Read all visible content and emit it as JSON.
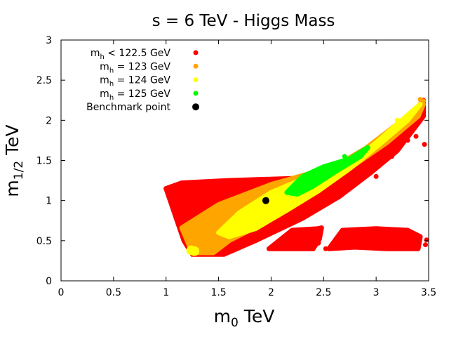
{
  "chart_data": {
    "type": "scatter",
    "title": "s = 6 TeV - Higgs Mass",
    "xlabel": {
      "main": "m",
      "sub": "0",
      "rest": " TeV"
    },
    "ylabel": {
      "main": "m",
      "sub": "1/2",
      "rest": " TeV"
    },
    "xlim": [
      0,
      3.5
    ],
    "ylim": [
      0,
      3
    ],
    "xticks": [
      "0",
      "0.5",
      "1",
      "1.5",
      "2",
      "2.5",
      "3",
      "3.5"
    ],
    "yticks": [
      "0",
      "0.5",
      "1",
      "1.5",
      "2",
      "2.5",
      "3"
    ],
    "legend": [
      {
        "main": "m",
        "sub": "h",
        "rest": " < 122.5 GeV",
        "color": "#ff0000"
      },
      {
        "main": "m",
        "sub": "h",
        "rest": " = 123 GeV",
        "color": "#ffa500"
      },
      {
        "main": "m",
        "sub": "h",
        "rest": " = 124 GeV",
        "color": "#ffff00"
      },
      {
        "main": "m",
        "sub": "h",
        "rest": " = 125 GeV",
        "color": "#00ff00"
      },
      {
        "main": "Benchmark point",
        "sub": "",
        "rest": "",
        "color": "#000000"
      }
    ],
    "series": [
      {
        "name": "mh < 122.5 GeV",
        "color": "#ff0000",
        "regions": [
          [
            [
              1.0,
              1.15
            ],
            [
              1.15,
              1.22
            ],
            [
              1.6,
              1.25
            ],
            [
              2.3,
              1.28
            ],
            [
              2.55,
              1.3
            ],
            [
              2.85,
              1.5
            ],
            [
              3.2,
              1.85
            ],
            [
              3.45,
              2.25
            ],
            [
              3.45,
              2.05
            ],
            [
              3.2,
              1.62
            ],
            [
              2.95,
              1.35
            ],
            [
              2.65,
              1.05
            ],
            [
              2.3,
              0.78
            ],
            [
              1.85,
              0.5
            ],
            [
              1.55,
              0.33
            ],
            [
              1.25,
              0.33
            ],
            [
              1.17,
              0.5
            ]
          ],
          [
            [
              2.0,
              0.4
            ],
            [
              2.15,
              0.55
            ],
            [
              2.48,
              0.66
            ],
            [
              2.46,
              0.52
            ],
            [
              2.4,
              0.4
            ]
          ],
          [
            [
              1.98,
              0.4
            ],
            [
              2.2,
              0.63
            ],
            [
              2.45,
              0.65
            ],
            [
              2.45,
              0.47
            ]
          ],
          [
            [
              2.55,
              0.4
            ],
            [
              2.68,
              0.63
            ],
            [
              3.0,
              0.65
            ],
            [
              3.3,
              0.63
            ],
            [
              3.42,
              0.55
            ],
            [
              3.4,
              0.4
            ],
            [
              3.1,
              0.4
            ],
            [
              2.8,
              0.42
            ]
          ]
        ],
        "points": [
          [
            3.45,
            2.25
          ],
          [
            3.46,
            1.7
          ],
          [
            3.3,
            1.75
          ],
          [
            3.2,
            1.65
          ],
          [
            3.25,
            1.9
          ],
          [
            3.05,
            1.5
          ],
          [
            3.15,
            1.55
          ],
          [
            2.95,
            1.4
          ],
          [
            2.75,
            1.25
          ],
          [
            2.65,
            1.15
          ],
          [
            2.55,
            1.05
          ],
          [
            2.5,
            0.95
          ],
          [
            2.85,
            1.3
          ],
          [
            2.9,
            1.45
          ],
          [
            3.0,
            1.3
          ],
          [
            3.38,
            1.8
          ],
          [
            2.42,
            0.95
          ],
          [
            3.48,
            0.51
          ],
          [
            2.52,
            0.4
          ],
          [
            3.47,
            0.45
          ],
          [
            1.0,
            1.15
          ],
          [
            3.35,
            1.95
          ],
          [
            3.1,
            1.6
          ]
        ]
      },
      {
        "name": "mh = 123 GeV",
        "color": "#ffa500",
        "regions": [
          [
            [
              1.15,
              0.66
            ],
            [
              1.5,
              0.95
            ],
            [
              2.0,
              1.2
            ],
            [
              2.35,
              1.33
            ],
            [
              2.6,
              1.42
            ],
            [
              2.9,
              1.65
            ],
            [
              3.2,
              1.95
            ],
            [
              3.45,
              2.2
            ],
            [
              3.4,
              2.05
            ],
            [
              3.1,
              1.72
            ],
            [
              2.8,
              1.45
            ],
            [
              2.5,
              1.18
            ],
            [
              2.2,
              0.94
            ],
            [
              1.9,
              0.7
            ],
            [
              1.6,
              0.5
            ],
            [
              1.45,
              0.35
            ],
            [
              1.25,
              0.35
            ]
          ]
        ],
        "points": [
          [
            3.42,
            2.26
          ],
          [
            3.45,
            2.24
          ]
        ]
      },
      {
        "name": "mh = 124 GeV",
        "color": "#ffff00",
        "regions": [
          [
            [
              1.5,
              0.6
            ],
            [
              1.7,
              0.85
            ],
            [
              2.0,
              1.1
            ],
            [
              2.4,
              1.32
            ],
            [
              2.6,
              1.36
            ],
            [
              2.85,
              1.55
            ],
            [
              3.2,
              1.95
            ],
            [
              3.42,
              2.2
            ],
            [
              3.3,
              2.0
            ],
            [
              3.05,
              1.72
            ],
            [
              2.75,
              1.4
            ],
            [
              2.45,
              1.12
            ],
            [
              2.15,
              0.88
            ],
            [
              1.85,
              0.65
            ],
            [
              1.6,
              0.55
            ]
          ]
        ],
        "points": [
          [
            1.24,
            0.38
          ],
          [
            1.27,
            0.37
          ],
          [
            3.2,
            2.0
          ]
        ]
      },
      {
        "name": "mh = 125 GeV",
        "color": "#00ff00",
        "regions": [
          [
            [
              2.15,
              1.1
            ],
            [
              2.3,
              1.3
            ],
            [
              2.5,
              1.42
            ],
            [
              2.75,
              1.52
            ],
            [
              2.92,
              1.66
            ],
            [
              2.85,
              1.55
            ],
            [
              2.6,
              1.35
            ],
            [
              2.4,
              1.18
            ],
            [
              2.25,
              1.08
            ]
          ]
        ],
        "points": [
          [
            2.88,
            1.62
          ],
          [
            2.7,
            1.55
          ]
        ]
      },
      {
        "name": "Benchmark point",
        "color": "#000000",
        "regions": [],
        "points": [
          [
            1.95,
            1.0
          ]
        ]
      }
    ]
  }
}
